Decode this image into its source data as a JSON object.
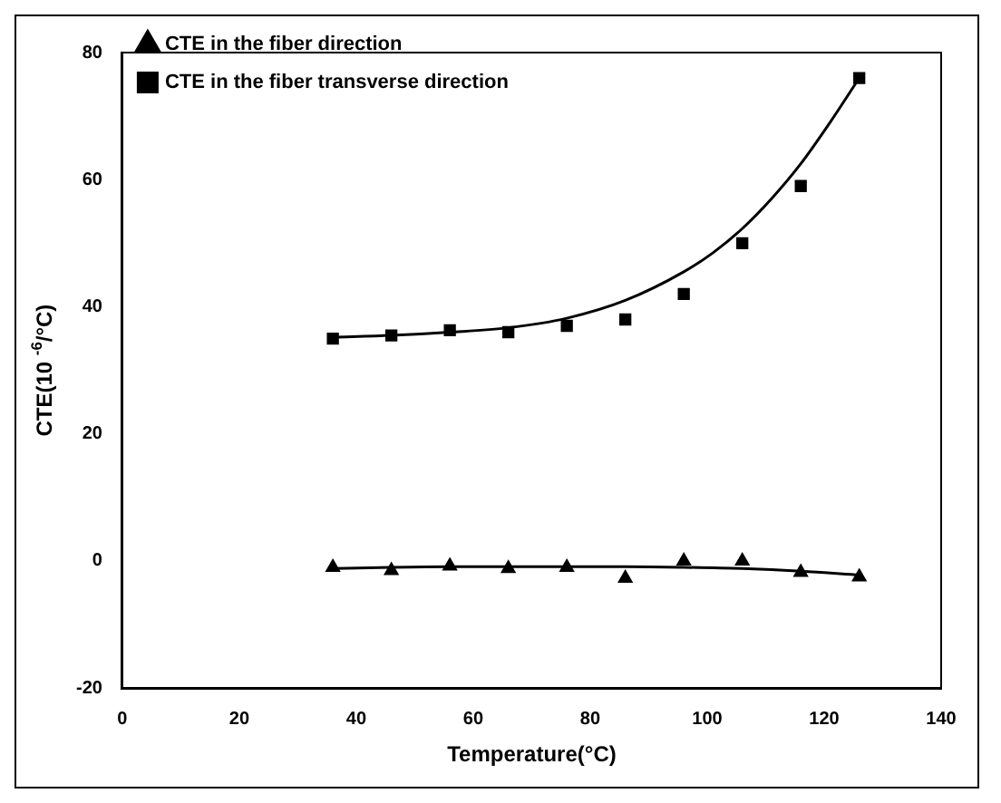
{
  "chart_data": {
    "type": "scatter",
    "xlabel": "Temperature(°C)",
    "ylabel": "CTE(10 $^{-6}$/°C)",
    "xlim": [
      0,
      140
    ],
    "xticks": [
      0,
      20,
      40,
      60,
      80,
      100,
      120,
      140
    ],
    "ylim": [
      -20,
      80
    ],
    "yticks": [
      -20,
      0,
      20,
      40,
      60,
      80
    ],
    "grid": false,
    "legend": "top left",
    "series": [
      {
        "name": "CTE in the fiber direction",
        "color": "#000000",
        "marker": "triangle",
        "x": [
          36,
          46,
          56,
          66,
          76,
          86,
          96,
          106,
          116,
          126
        ],
        "values": [
          -1,
          -1.5,
          -0.8,
          -1.2,
          -1,
          -2.7,
          0,
          0,
          -1.8,
          -2.5
        ]
      },
      {
        "name": "CTE in the fiber transverse direction",
        "color": "#000000",
        "marker": "square",
        "x": [
          36,
          46,
          56,
          66,
          76,
          86,
          96,
          106,
          116,
          126
        ],
        "values": [
          35,
          35.5,
          36.3,
          36,
          37,
          38,
          42,
          50,
          59,
          76
        ]
      },
      {
        "type": "line",
        "color": "#000000",
        "marker": "none",
        "x": [
          36,
          46,
          56,
          66,
          76,
          86,
          96,
          106,
          116,
          126
        ],
        "values": [
          -1.2,
          -1.0,
          -0.9,
          -0.9,
          -0.9,
          -0.9,
          -1.0,
          -1.2,
          -1.6,
          -2.2
        ]
      },
      {
        "type": "line",
        "color": "#000000",
        "marker": "none",
        "x": [
          36,
          46,
          56,
          66,
          76,
          86,
          96,
          101,
          106,
          111,
          116,
          121,
          126
        ],
        "values": [
          35.2,
          35.5,
          36,
          36.7,
          38.2,
          41,
          45.5,
          48.5,
          52.3,
          57,
          62.5,
          69,
          76
        ]
      }
    ]
  }
}
